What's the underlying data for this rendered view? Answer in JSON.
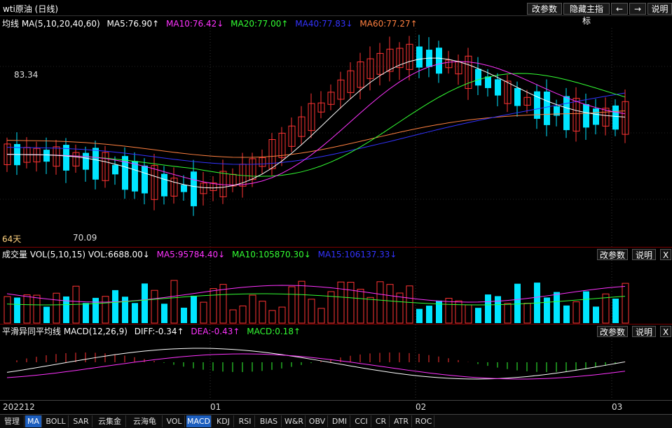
{
  "header": {
    "title": "wti原油 (日线)",
    "buttons": [
      "改参数",
      "隐藏主指标",
      "←",
      "→",
      "说明"
    ],
    "icons": [
      "left-arrow-icon",
      "right-arrow-icon"
    ]
  },
  "price_panel": {
    "legend": {
      "prefix": "均线 MA(5,10,20,40,60)",
      "ma5": "MA5:76.90↑",
      "ma10": "MA10:76.42↓",
      "ma20": "MA20:77.00↑",
      "ma40": "MA40:77.83↓",
      "ma60": "MA60:77.27↑"
    },
    "high_label": "83.34",
    "low_label": "70.09",
    "period_label": "64天"
  },
  "volume_panel": {
    "legend": {
      "prefix": "成交量 VOL(5,10,15) VOL:6688.00↓",
      "ma5": "MA5:95784.40↓",
      "ma10": "MA10:105870.30↓",
      "ma15": "MA15:106137.33↓"
    },
    "buttons": [
      "改参数",
      "说明",
      "X"
    ]
  },
  "macd_panel": {
    "legend": {
      "prefix": "平滑异同平均线 MACD(12,26,9)",
      "diff": "DIFF:-0.34↑",
      "dea": "DEA:-0.43↑",
      "macd": "MACD:0.18↑"
    },
    "buttons": [
      "改参数",
      "说明",
      "X"
    ]
  },
  "x_axis": {
    "labels": [
      "202212",
      "01",
      "02",
      "03"
    ]
  },
  "tabs": {
    "items": [
      "管理",
      "MA",
      "BOLL",
      "SAR",
      "云集金",
      "云海龟",
      "VOL",
      "MACD",
      "KDJ",
      "RSI",
      "BIAS",
      "W&R",
      "OBV",
      "DMI",
      "CCI",
      "CR",
      "ATR",
      "ROC"
    ],
    "active": [
      "MA",
      "MACD"
    ]
  },
  "colors": {
    "up": "#ff3333",
    "down": "#00e5ff",
    "ma5": "#ffffff",
    "ma10": "#ff33ff",
    "ma20": "#33ff33",
    "ma40": "#3333ff",
    "ma60": "#ff8040"
  }
}
